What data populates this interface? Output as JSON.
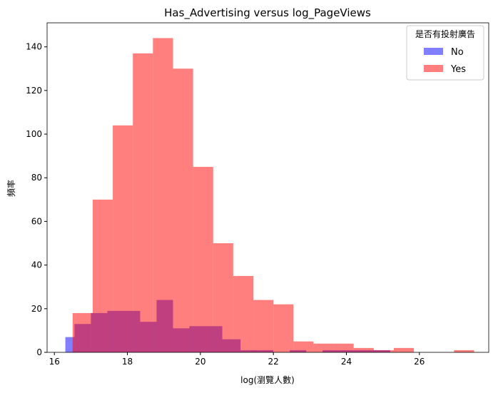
{
  "chart_data": {
    "type": "histogram",
    "title": "Has_Advertising versus log_PageViews",
    "xlabel": "log(瀏覽人數)",
    "ylabel": "頻率",
    "xlim": [
      15.8,
      27.9
    ],
    "ylim": [
      0,
      151
    ],
    "xticks": [
      16,
      18,
      20,
      22,
      24,
      26,
      28
    ],
    "yticks": [
      0,
      20,
      40,
      60,
      80,
      100,
      120,
      140
    ],
    "legend": {
      "title": "是否有投射廣告",
      "position": "top-right"
    },
    "series": [
      {
        "name": "No",
        "color": "#0000ff",
        "alpha": 0.5,
        "bins": [
          [
            16.3,
            16.55,
            7
          ],
          [
            16.55,
            17.0,
            13
          ],
          [
            17.0,
            17.45,
            18
          ],
          [
            17.45,
            17.9,
            19
          ],
          [
            17.9,
            18.35,
            19
          ],
          [
            18.35,
            18.8,
            14
          ],
          [
            18.8,
            19.25,
            24
          ],
          [
            19.25,
            19.7,
            11
          ],
          [
            19.7,
            20.15,
            12
          ],
          [
            20.15,
            20.6,
            12
          ],
          [
            20.6,
            21.1,
            6
          ],
          [
            21.1,
            21.55,
            1
          ],
          [
            21.55,
            22.0,
            1
          ],
          [
            22.0,
            22.45,
            0
          ],
          [
            22.45,
            22.9,
            1
          ],
          [
            22.9,
            23.35,
            0
          ],
          [
            23.35,
            23.8,
            1
          ],
          [
            23.8,
            24.25,
            1
          ],
          [
            24.25,
            24.7,
            1
          ],
          [
            24.7,
            25.2,
            1
          ]
        ]
      },
      {
        "name": "Yes",
        "color": "#ff0000",
        "alpha": 0.5,
        "bins": [
          [
            16.5,
            17.05,
            18
          ],
          [
            17.05,
            17.6,
            70
          ],
          [
            17.6,
            18.15,
            104
          ],
          [
            18.15,
            18.7,
            137
          ],
          [
            18.7,
            19.25,
            144
          ],
          [
            19.25,
            19.8,
            130
          ],
          [
            19.8,
            20.35,
            85
          ],
          [
            20.35,
            20.9,
            50
          ],
          [
            20.9,
            21.45,
            35
          ],
          [
            21.45,
            22.0,
            24
          ],
          [
            22.0,
            22.55,
            22
          ],
          [
            22.55,
            23.1,
            5
          ],
          [
            23.1,
            23.65,
            4
          ],
          [
            23.65,
            24.2,
            4
          ],
          [
            24.2,
            24.75,
            2
          ],
          [
            24.75,
            25.3,
            1
          ],
          [
            25.3,
            25.85,
            2
          ],
          [
            25.85,
            26.4,
            0
          ],
          [
            26.4,
            26.95,
            0
          ],
          [
            26.95,
            27.5,
            1
          ]
        ]
      }
    ]
  }
}
